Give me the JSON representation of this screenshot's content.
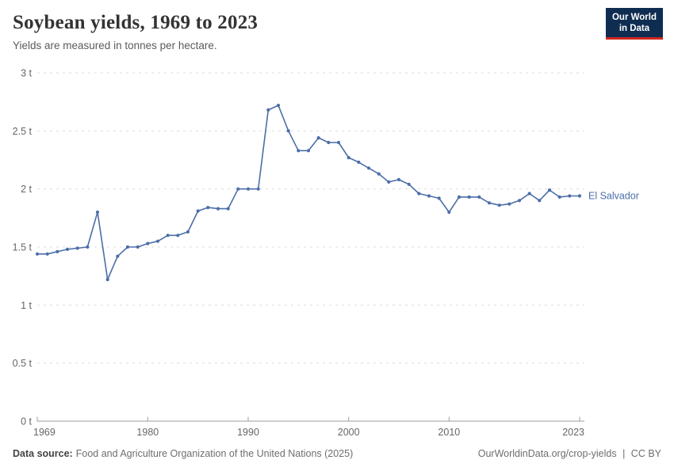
{
  "header": {
    "title": "Soybean yields, 1969 to 2023",
    "subtitle": "Yields are measured in tonnes per hectare."
  },
  "logo": {
    "line1": "Our World",
    "line2": "in Data",
    "bg_color": "#0F2D50",
    "accent_color": "#D2271E"
  },
  "footer": {
    "source_label": "Data source:",
    "source_text": "Food and Agriculture Organization of the United Nations (2025)",
    "link_text": "OurWorldinData.org/crop-yields",
    "separator": "|",
    "license": "CC BY"
  },
  "chart_data": {
    "type": "line",
    "title": "Soybean yields, 1969 to 2023",
    "xlabel": "",
    "ylabel": "tonnes per hectare",
    "xlim": [
      1969,
      2023
    ],
    "ylim": [
      0,
      3
    ],
    "grid": "horizontal-dashed",
    "legend_position": "label-right-of-line",
    "line_color": "#4C6EA8",
    "axis_color": "#9e9e9e",
    "grid_color": "#dcdcdc",
    "tick_label_color": "#666666",
    "yticks": [
      {
        "value": 0,
        "label": "0 t"
      },
      {
        "value": 0.5,
        "label": "0.5 t"
      },
      {
        "value": 1,
        "label": "1 t"
      },
      {
        "value": 1.5,
        "label": "1.5 t"
      },
      {
        "value": 2,
        "label": "2 t"
      },
      {
        "value": 2.5,
        "label": "2.5 t"
      },
      {
        "value": 3,
        "label": "3 t"
      }
    ],
    "xticks": [
      {
        "value": 1969,
        "label": "1969"
      },
      {
        "value": 1980,
        "label": "1980"
      },
      {
        "value": 1990,
        "label": "1990"
      },
      {
        "value": 2000,
        "label": "2000"
      },
      {
        "value": 2010,
        "label": "2010"
      },
      {
        "value": 2023,
        "label": "2023"
      }
    ],
    "series": [
      {
        "name": "El Salvador",
        "years": [
          1969,
          1970,
          1971,
          1972,
          1973,
          1974,
          1975,
          1976,
          1977,
          1978,
          1979,
          1980,
          1981,
          1982,
          1983,
          1984,
          1985,
          1986,
          1987,
          1988,
          1989,
          1990,
          1991,
          1992,
          1993,
          1994,
          1995,
          1996,
          1997,
          1998,
          1999,
          2000,
          2001,
          2002,
          2003,
          2004,
          2005,
          2006,
          2007,
          2008,
          2009,
          2010,
          2011,
          2012,
          2013,
          2014,
          2015,
          2016,
          2017,
          2018,
          2019,
          2020,
          2021,
          2022,
          2023
        ],
        "values": [
          1.44,
          1.44,
          1.46,
          1.48,
          1.49,
          1.5,
          1.8,
          1.22,
          1.42,
          1.5,
          1.5,
          1.53,
          1.55,
          1.6,
          1.6,
          1.63,
          1.81,
          1.84,
          1.83,
          1.83,
          2.0,
          2.0,
          2.0,
          2.68,
          2.72,
          2.5,
          2.33,
          2.33,
          2.44,
          2.4,
          2.4,
          2.27,
          2.23,
          2.18,
          2.13,
          2.06,
          2.08,
          2.04,
          1.96,
          1.94,
          1.92,
          1.8,
          1.93,
          1.93,
          1.93,
          1.88,
          1.86,
          1.87,
          1.9,
          1.96,
          1.9,
          1.99,
          1.93,
          1.94,
          1.94
        ]
      }
    ]
  }
}
